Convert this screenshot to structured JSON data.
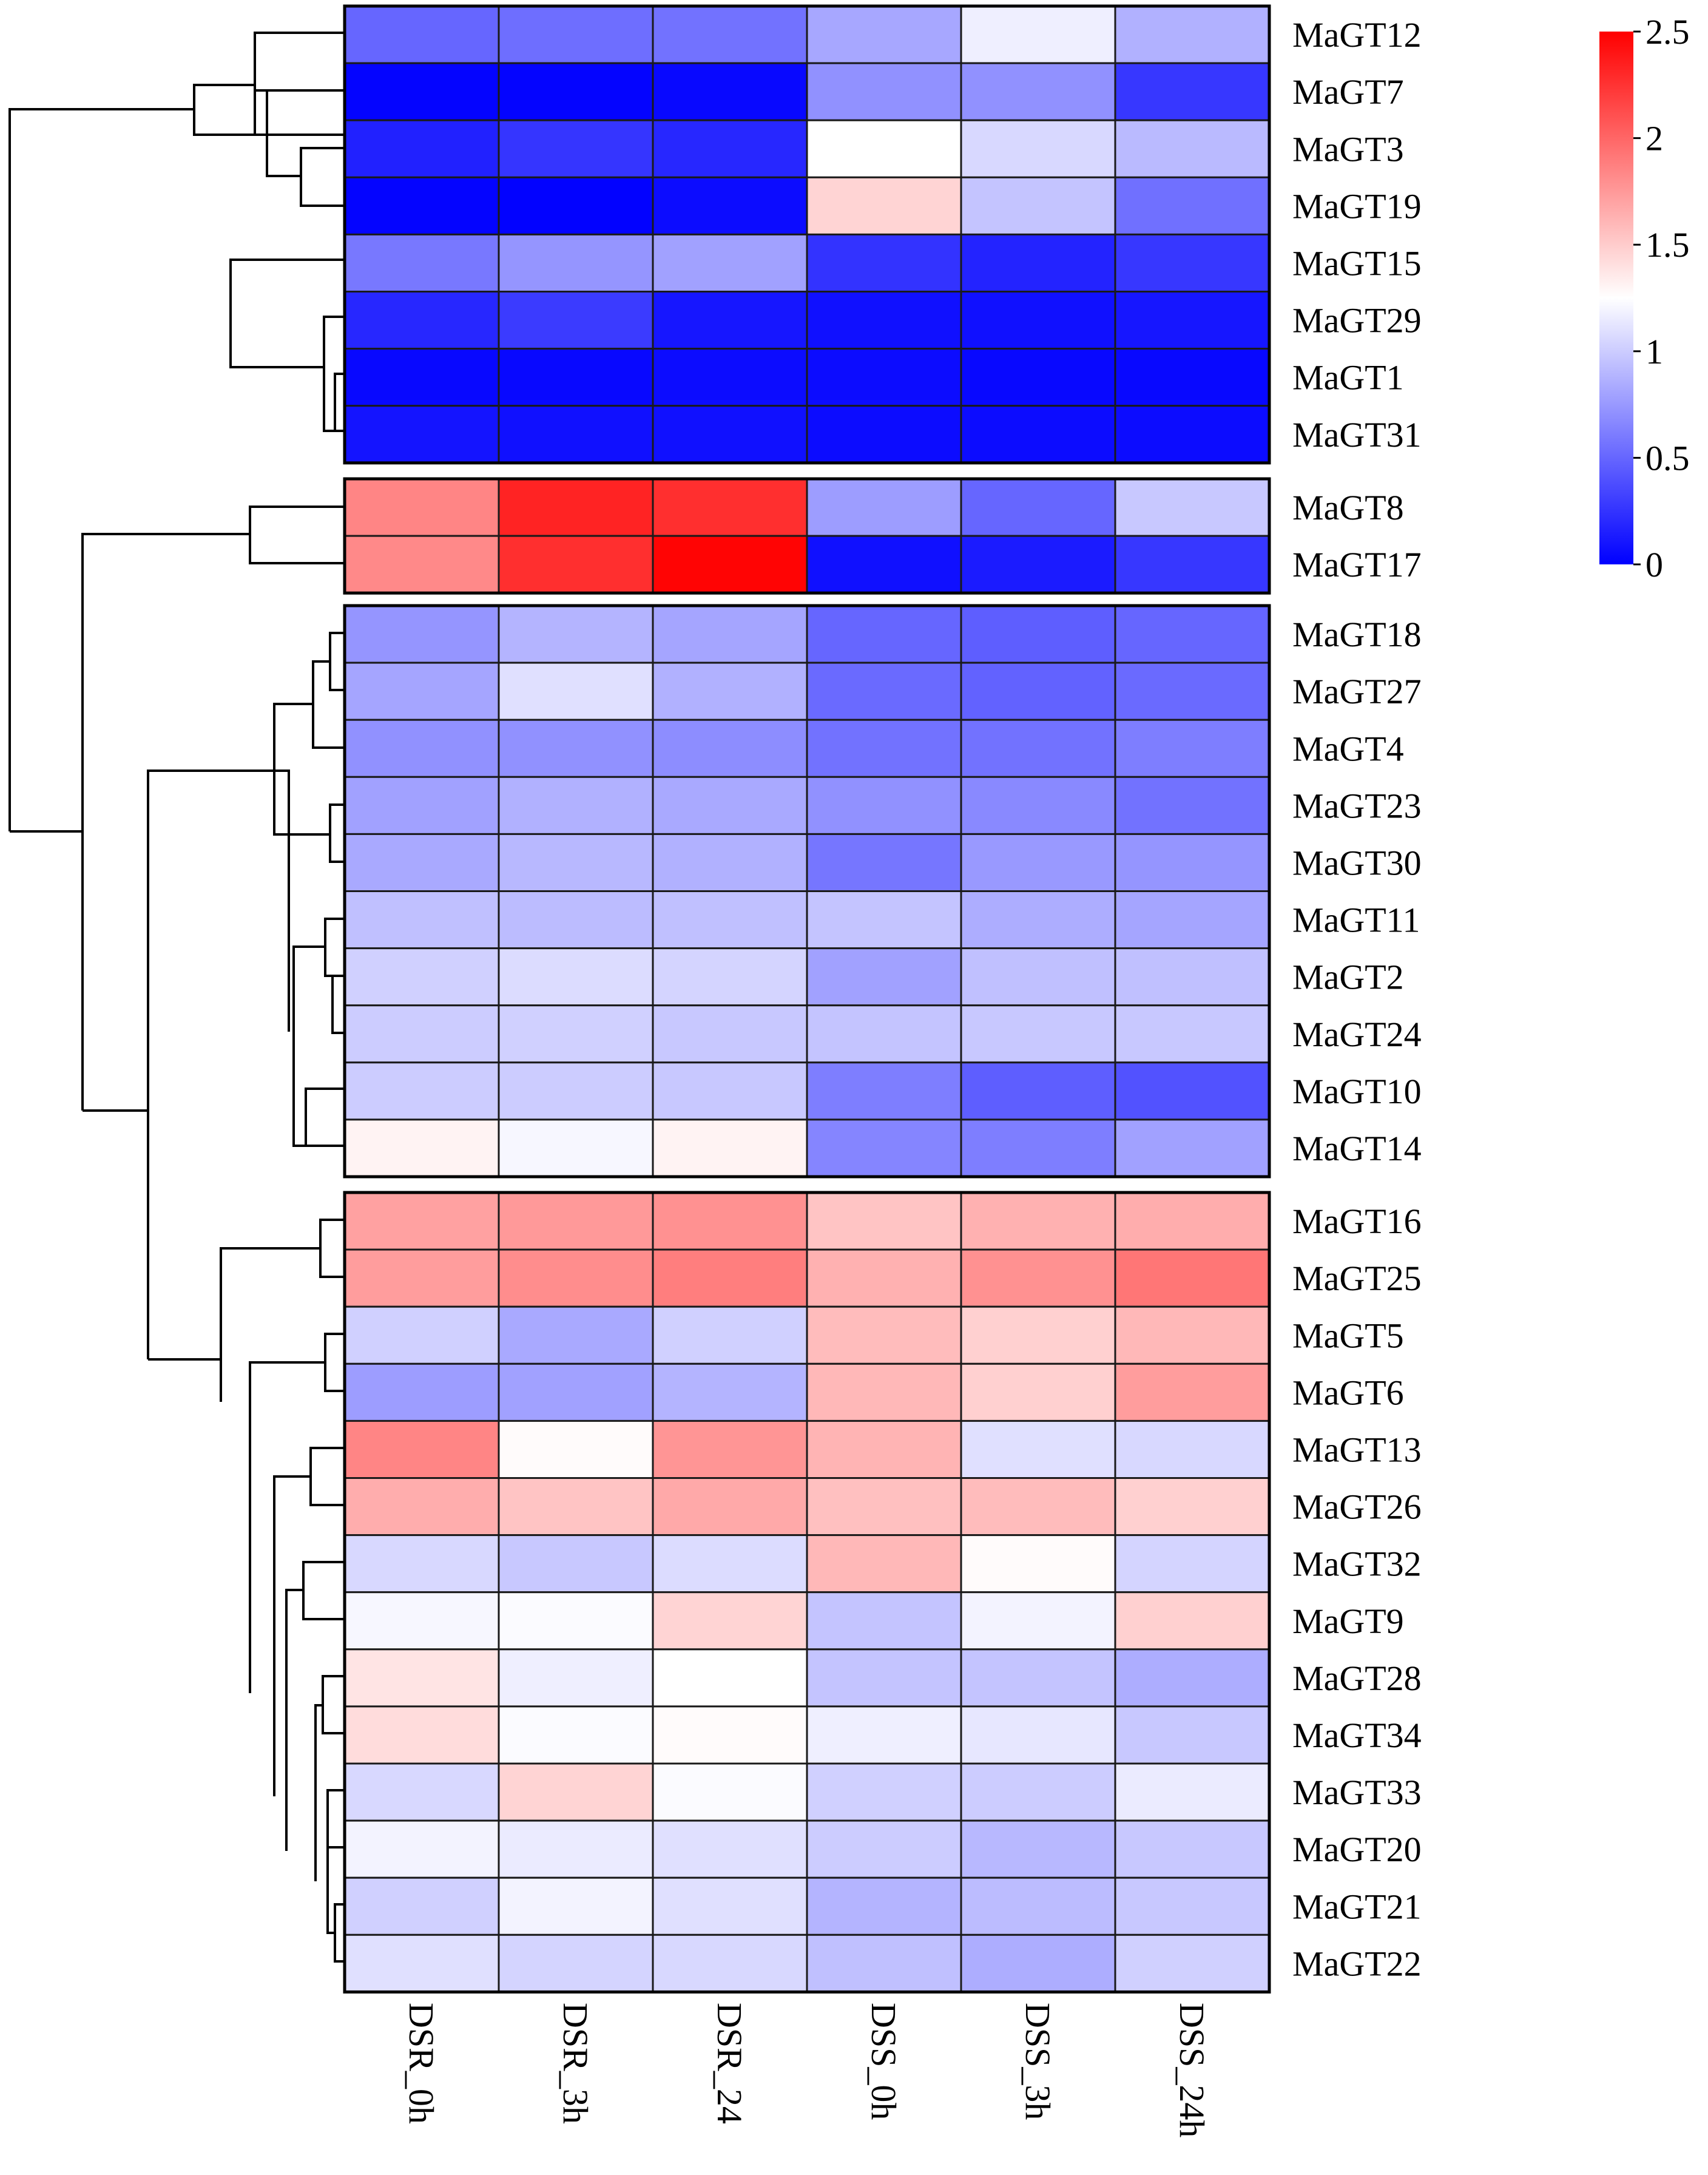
{
  "chart_data": {
    "type": "heatmap",
    "columns": [
      "DSR_0h",
      "DSR_3h",
      "DSR_24",
      "DSS_0h",
      "DSS_3h",
      "DSS_24h"
    ],
    "color_scale": {
      "min": 0,
      "max": 2.5,
      "low": "#0000ff",
      "mid": "#ffffff",
      "high": "#ff0000",
      "mid_value": 1.25
    },
    "colorbar_ticks": [
      {
        "value": 2.5,
        "label": "2.5"
      },
      {
        "value": 2,
        "label": "2"
      },
      {
        "value": 1.5,
        "label": "1.5"
      },
      {
        "value": 1,
        "label": "1"
      },
      {
        "value": 0.5,
        "label": "0.5"
      },
      {
        "value": 0,
        "label": "0"
      }
    ],
    "groups": [
      {
        "rows": [
          {
            "gene": "MaGT12",
            "values": [
              0.5,
              0.54,
              0.56,
              0.82,
              1.17,
              0.87
            ]
          },
          {
            "gene": "MaGT7",
            "values": [
              0.02,
              0.02,
              0.04,
              0.71,
              0.71,
              0.27
            ]
          },
          {
            "gene": "MaGT3",
            "values": [
              0.16,
              0.26,
              0.19,
              1.25,
              1.06,
              0.91
            ]
          },
          {
            "gene": "MaGT19",
            "values": [
              0.02,
              0.01,
              0.06,
              1.46,
              0.96,
              0.55
            ]
          },
          {
            "gene": "MaGT15",
            "values": [
              0.59,
              0.73,
              0.79,
              0.25,
              0.17,
              0.27
            ]
          },
          {
            "gene": "MaGT29",
            "values": [
              0.19,
              0.29,
              0.11,
              0.08,
              0.08,
              0.11
            ]
          },
          {
            "gene": "MaGT1",
            "values": [
              0.04,
              0.04,
              0.06,
              0.06,
              0.04,
              0.04
            ]
          },
          {
            "gene": "MaGT31",
            "values": [
              0.1,
              0.08,
              0.08,
              0.06,
              0.06,
              0.06
            ]
          }
        ]
      },
      {
        "rows": [
          {
            "gene": "MaGT8",
            "values": [
              1.85,
              2.33,
              2.27,
              0.77,
              0.5,
              0.98
            ]
          },
          {
            "gene": "MaGT17",
            "values": [
              1.83,
              2.27,
              2.48,
              0.08,
              0.13,
              0.27
            ]
          }
        ]
      },
      {
        "rows": [
          {
            "gene": "MaGT18",
            "values": [
              0.73,
              0.88,
              0.81,
              0.5,
              0.46,
              0.5
            ]
          },
          {
            "gene": "MaGT27",
            "values": [
              0.81,
              1.1,
              0.87,
              0.52,
              0.48,
              0.52
            ]
          },
          {
            "gene": "MaGT4",
            "values": [
              0.71,
              0.71,
              0.69,
              0.56,
              0.56,
              0.62
            ]
          },
          {
            "gene": "MaGT23",
            "values": [
              0.79,
              0.87,
              0.83,
              0.71,
              0.67,
              0.56
            ]
          },
          {
            "gene": "MaGT30",
            "values": [
              0.83,
              0.9,
              0.87,
              0.58,
              0.75,
              0.73
            ]
          },
          {
            "gene": "MaGT11",
            "values": [
              0.94,
              0.92,
              0.94,
              0.96,
              0.85,
              0.81
            ]
          },
          {
            "gene": "MaGT2",
            "values": [
              1.02,
              1.08,
              1.04,
              0.79,
              0.94,
              0.94
            ]
          },
          {
            "gene": "MaGT24",
            "values": [
              1.0,
              1.02,
              0.98,
              0.96,
              0.98,
              0.98
            ]
          },
          {
            "gene": "MaGT10",
            "values": [
              1.0,
              1.0,
              0.98,
              0.62,
              0.46,
              0.4
            ]
          },
          {
            "gene": "MaGT14",
            "values": [
              1.31,
              1.21,
              1.31,
              0.65,
              0.62,
              0.79
            ]
          }
        ]
      },
      {
        "rows": [
          {
            "gene": "MaGT16",
            "values": [
              1.71,
              1.75,
              1.79,
              1.54,
              1.63,
              1.65
            ]
          },
          {
            "gene": "MaGT25",
            "values": [
              1.73,
              1.81,
              1.88,
              1.63,
              1.79,
              1.92
            ]
          },
          {
            "gene": "MaGT5",
            "values": [
              1.02,
              0.83,
              1.02,
              1.58,
              1.48,
              1.6
            ]
          },
          {
            "gene": "MaGT6",
            "values": [
              0.77,
              0.79,
              0.88,
              1.6,
              1.48,
              1.73
            ]
          },
          {
            "gene": "MaGT13",
            "values": [
              1.85,
              1.27,
              1.77,
              1.62,
              1.1,
              1.06
            ]
          },
          {
            "gene": "MaGT26",
            "values": [
              1.65,
              1.54,
              1.67,
              1.56,
              1.58,
              1.48
            ]
          },
          {
            "gene": "MaGT32",
            "values": [
              1.06,
              0.98,
              1.08,
              1.6,
              1.27,
              1.04
            ]
          },
          {
            "gene": "MaGT9",
            "values": [
              1.21,
              1.23,
              1.46,
              0.96,
              1.19,
              1.48
            ]
          },
          {
            "gene": "MaGT28",
            "values": [
              1.38,
              1.17,
              1.25,
              0.96,
              0.96,
              0.85
            ]
          },
          {
            "gene": "MaGT34",
            "values": [
              1.42,
              1.23,
              1.27,
              1.17,
              1.13,
              0.98
            ]
          },
          {
            "gene": "MaGT33",
            "values": [
              1.06,
              1.46,
              1.23,
              1.02,
              1.0,
              1.15
            ]
          },
          {
            "gene": "MaGT20",
            "values": [
              1.19,
              1.15,
              1.1,
              1.0,
              0.9,
              0.98
            ]
          },
          {
            "gene": "MaGT21",
            "values": [
              1.02,
              1.19,
              1.1,
              0.88,
              0.92,
              0.98
            ]
          },
          {
            "gene": "MaGT22",
            "values": [
              1.1,
              1.04,
              1.06,
              0.94,
              0.85,
              1.02
            ]
          }
        ]
      }
    ]
  }
}
